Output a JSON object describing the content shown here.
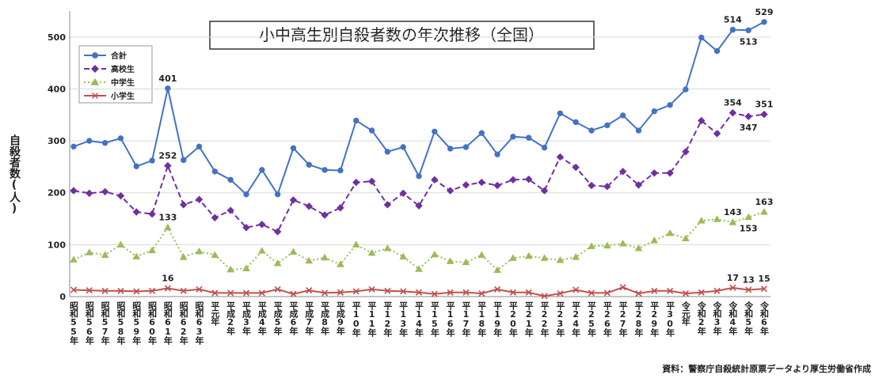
{
  "chart_data": {
    "type": "line",
    "title": "小中高生別自殺者数の年次推移（全国）",
    "y_label": "自殺者数(人)",
    "source": "資料：警察庁自殺統計原票データより厚生労働省作成",
    "categories": [
      "昭和55年",
      "昭和56年",
      "昭和57年",
      "昭和58年",
      "昭和59年",
      "昭和60年",
      "昭和61年",
      "昭和62年",
      "昭和63年",
      "平元年",
      "平成2年",
      "平成3年",
      "平成4年",
      "平成5年",
      "平成6年",
      "平成7年",
      "平成8年",
      "平成9年",
      "平10年",
      "平11年",
      "平12年",
      "平13年",
      "平14年",
      "平15年",
      "平16年",
      "平17年",
      "平18年",
      "平19年",
      "平20年",
      "平21年",
      "平22年",
      "平23年",
      "平24年",
      "平25年",
      "平26年",
      "平27年",
      "平28年",
      "平29年",
      "平30年",
      "令元年",
      "令和2年",
      "令和3年",
      "令和4年",
      "令和5年",
      "令和6年"
    ],
    "ylim": [
      0,
      550
    ],
    "yticks": [
      0,
      100,
      200,
      300,
      400,
      500
    ],
    "grid": true,
    "series": [
      {
        "name": "合計",
        "color": "#4472c4",
        "line_style": "solid",
        "marker": "circle",
        "values": [
          289,
          300,
          296,
          305,
          251,
          262,
          401,
          263,
          289,
          241,
          225,
          197,
          244,
          197,
          286,
          254,
          244,
          243,
          339,
          320,
          279,
          288,
          232,
          318,
          285,
          288,
          315,
          274,
          308,
          306,
          287,
          353,
          336,
          320,
          330,
          349,
          320,
          357,
          369,
          399,
          499,
          473,
          514,
          513,
          529
        ],
        "value_labels": [
          null,
          null,
          null,
          null,
          null,
          null,
          "401",
          null,
          null,
          null,
          null,
          null,
          null,
          null,
          null,
          null,
          null,
          null,
          null,
          null,
          null,
          null,
          null,
          null,
          null,
          null,
          null,
          null,
          null,
          null,
          null,
          null,
          null,
          null,
          null,
          null,
          null,
          null,
          null,
          null,
          null,
          null,
          "514",
          "513",
          "529"
        ]
      },
      {
        "name": "高校生",
        "color": "#7030a0",
        "line_style": "dashed",
        "marker": "diamond",
        "values": [
          204,
          199,
          202,
          194,
          163,
          159,
          252,
          177,
          187,
          152,
          166,
          133,
          139,
          125,
          186,
          174,
          157,
          171,
          220,
          222,
          177,
          199,
          175,
          225,
          204,
          215,
          220,
          214,
          225,
          226,
          204,
          269,
          249,
          214,
          212,
          241,
          215,
          238,
          238,
          279,
          339,
          314,
          354,
          347,
          351
        ],
        "value_labels": [
          null,
          null,
          null,
          null,
          null,
          null,
          "252",
          null,
          null,
          null,
          null,
          null,
          null,
          null,
          null,
          null,
          null,
          null,
          null,
          null,
          null,
          null,
          null,
          null,
          null,
          null,
          null,
          null,
          null,
          null,
          null,
          null,
          null,
          null,
          null,
          null,
          null,
          null,
          null,
          null,
          null,
          null,
          "354",
          "347",
          "351"
        ]
      },
      {
        "name": "中学生",
        "color": "#9bbb59",
        "line_style": "dotted",
        "marker": "triangle",
        "values": [
          71,
          85,
          80,
          100,
          77,
          89,
          133,
          76,
          87,
          80,
          52,
          54,
          88,
          64,
          86,
          69,
          75,
          62,
          100,
          84,
          93,
          77,
          53,
          81,
          68,
          66,
          80,
          51,
          74,
          78,
          74,
          70,
          76,
          97,
          98,
          102,
          93,
          108,
          122,
          112,
          146,
          149,
          143,
          153,
          163
        ],
        "value_labels": [
          null,
          null,
          null,
          null,
          null,
          null,
          "133",
          null,
          null,
          null,
          null,
          null,
          null,
          null,
          null,
          null,
          null,
          null,
          null,
          null,
          null,
          null,
          null,
          null,
          null,
          null,
          null,
          null,
          null,
          null,
          null,
          null,
          null,
          null,
          null,
          null,
          null,
          null,
          null,
          null,
          null,
          null,
          "143",
          "153",
          "163"
        ]
      },
      {
        "name": "小学生",
        "color": "#c0504d",
        "line_style": "solid",
        "marker": "x",
        "values": [
          13,
          12,
          11,
          11,
          10,
          11,
          16,
          11,
          14,
          7,
          7,
          7,
          7,
          14,
          5,
          12,
          7,
          8,
          10,
          14,
          11,
          10,
          8,
          5,
          8,
          8,
          6,
          14,
          8,
          8,
          1,
          6,
          13,
          7,
          7,
          18,
          6,
          11,
          11,
          6,
          8,
          11,
          17,
          13,
          15
        ],
        "value_labels": [
          null,
          null,
          null,
          null,
          null,
          null,
          "16",
          null,
          null,
          null,
          null,
          null,
          null,
          null,
          null,
          null,
          null,
          null,
          null,
          null,
          null,
          null,
          null,
          null,
          null,
          null,
          null,
          null,
          null,
          null,
          null,
          null,
          null,
          null,
          null,
          null,
          null,
          null,
          null,
          null,
          null,
          null,
          "17",
          "13",
          "15"
        ]
      }
    ]
  }
}
